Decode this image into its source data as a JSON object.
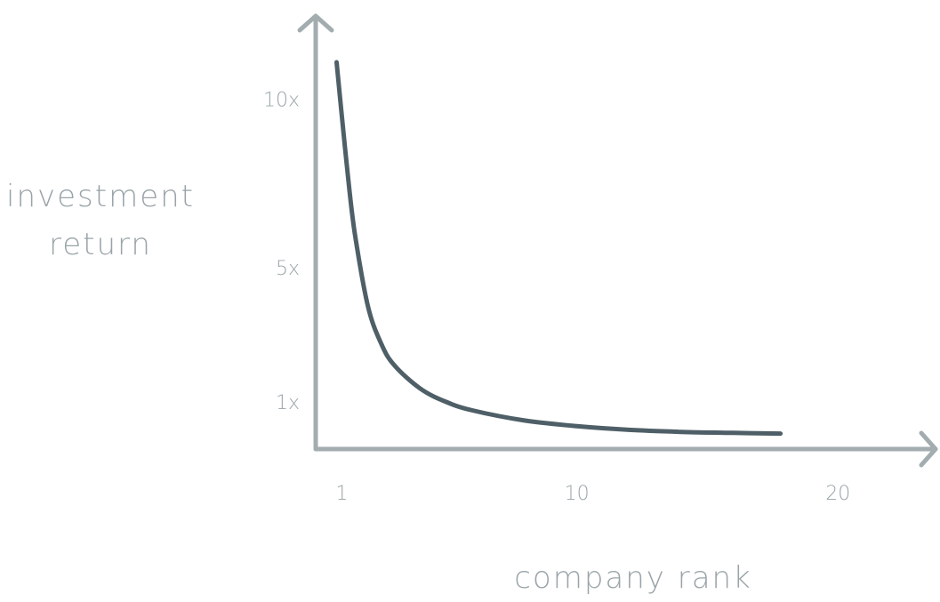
{
  "chart_data": {
    "type": "line",
    "title": "",
    "xlabel": "company rank",
    "ylabel_lines": [
      "investment",
      "return"
    ],
    "x_ticks": [
      {
        "value": 1,
        "label": "1"
      },
      {
        "value": 10,
        "label": "10"
      },
      {
        "value": 20,
        "label": "20"
      }
    ],
    "y_ticks": [
      {
        "value": 1,
        "label": "1x"
      },
      {
        "value": 5,
        "label": "5x"
      },
      {
        "value": 10,
        "label": "10x"
      }
    ],
    "xlim": [
      0,
      23.5
    ],
    "ylim": [
      -0.4,
      12
    ],
    "grid": false,
    "legend": "none",
    "series": [
      {
        "x": [
          0.8,
          1.0,
          1.25,
          1.5,
          2.0,
          2.5,
          3.0,
          4.0,
          5.0,
          6.0,
          8.0,
          10.0,
          12.0,
          14.0,
          16.0,
          17.8
        ],
        "y": [
          11.1,
          9.5,
          7.6,
          6.0,
          3.85,
          2.75,
          2.1,
          1.4,
          1.0,
          0.75,
          0.45,
          0.28,
          0.17,
          0.11,
          0.08,
          0.06
        ]
      }
    ]
  },
  "colors": {
    "axis": "#a3adb0",
    "curve": "#4f5f67",
    "text": "#9aa4a8"
  }
}
